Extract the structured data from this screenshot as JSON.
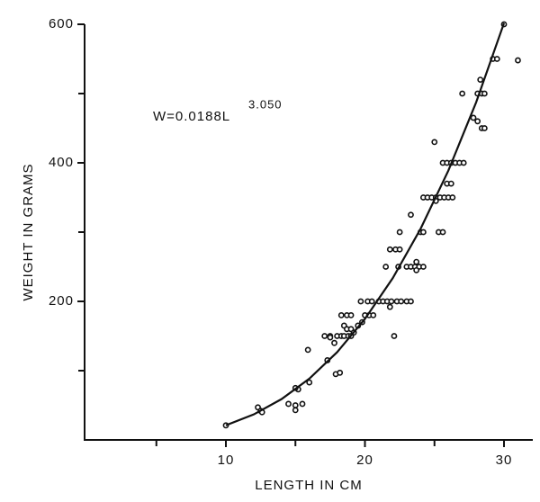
{
  "chart_data": {
    "type": "scatter",
    "x_label": "LENGTH IN CM",
    "y_label": "WEIGHT IN GRAMS",
    "annotation": {
      "text": "W=0.0188L",
      "superscript": "3.050"
    },
    "xlim": [
      0,
      32
    ],
    "ylim": [
      0,
      600
    ],
    "xticks": [
      10,
      20,
      30
    ],
    "xminor_ticks": [
      5,
      15,
      25
    ],
    "yticks": [
      200,
      400,
      600
    ],
    "yminor_ticks": [
      100,
      300,
      500
    ],
    "series": [
      {
        "type": "scatter",
        "color": "#111111",
        "x": [
          10,
          12.3,
          12.5,
          12.6,
          14.5,
          15,
          15,
          15.2,
          15,
          15.5,
          16,
          15.9,
          17.3,
          17.1,
          17.5,
          17.8,
          17.5,
          18,
          18.3,
          18.5,
          18.8,
          19,
          18.3,
          18.7,
          19,
          18.5,
          18.7,
          19,
          19.2,
          19.5,
          17.9,
          18.2,
          19.8,
          20,
          20.3,
          20.6,
          19.7,
          20.2,
          20.5,
          21,
          21.3,
          21.6,
          21.9,
          22.3,
          22.6,
          21.8,
          22.1,
          23,
          23.3,
          21.5,
          21.8,
          22.2,
          22.5,
          22.5,
          22.4,
          23,
          23.3,
          23.6,
          23.9,
          24.2,
          23.7,
          23.7,
          23.3,
          24,
          24.2,
          24.2,
          24.5,
          24.8,
          25.1,
          25.4,
          25.7,
          26,
          26.3,
          25,
          25.1,
          25.3,
          25.6,
          25.9,
          26.2,
          25.6,
          25.9,
          26.2,
          26.5,
          26.8,
          27.1,
          27,
          27.8,
          28.1,
          28.4,
          28.6,
          28.1,
          28.4,
          28.3,
          28.6,
          29.2,
          29.5,
          30,
          31
        ],
        "values": [
          21,
          47,
          42,
          40,
          52,
          50,
          43,
          73,
          75,
          52,
          83,
          130,
          115,
          150,
          150,
          140,
          148,
          150,
          150,
          150,
          150,
          150,
          180,
          180,
          180,
          165,
          160,
          160,
          155,
          165,
          95,
          97,
          170,
          180,
          180,
          180,
          200,
          200,
          200,
          200,
          200,
          200,
          200,
          200,
          200,
          192,
          150,
          200,
          200,
          250,
          275,
          275,
          275,
          300,
          250,
          250,
          250,
          250,
          250,
          250,
          245,
          257,
          325,
          300,
          300,
          350,
          350,
          350,
          350,
          350,
          350,
          350,
          350,
          430,
          345,
          300,
          300,
          370,
          370,
          400,
          400,
          400,
          400,
          400,
          400,
          500,
          465,
          460,
          450,
          450,
          500,
          500,
          520,
          500,
          550,
          550,
          600,
          548
        ]
      },
      {
        "type": "line",
        "color": "#111111",
        "x": [
          10,
          12,
          14,
          16,
          18,
          20,
          22,
          24,
          26,
          28,
          30
        ],
        "values": [
          21.1,
          36.8,
          58.9,
          88.5,
          126.7,
          174.7,
          233.6,
          304.7,
          388.9,
          487.5,
          601.7
        ]
      }
    ]
  }
}
